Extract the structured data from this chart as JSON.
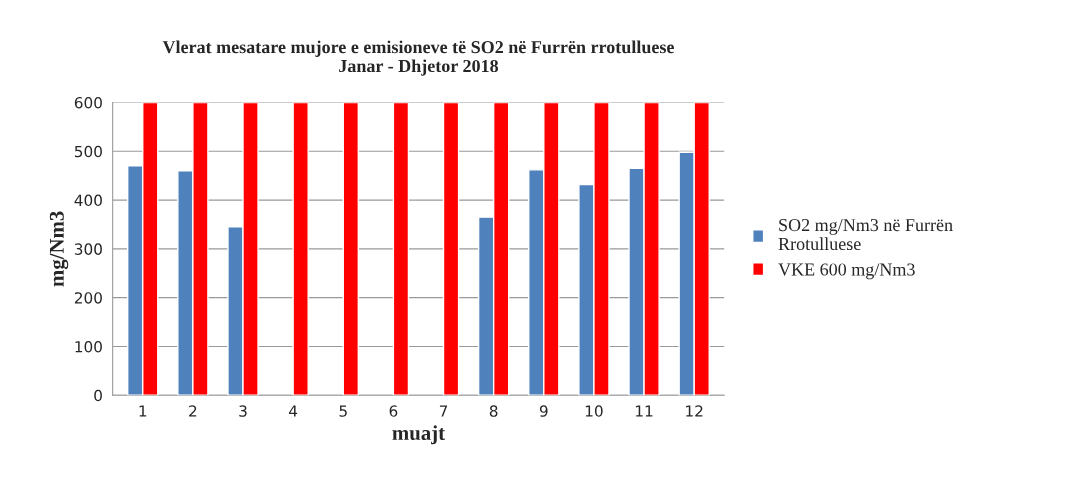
{
  "chart_data": {
    "type": "bar",
    "title": "Vlerat mesatare mujore e emisioneve të SO2 në Furrën rrotulluese\nJanar - Dhjetor 2018",
    "xlabel": "muajt",
    "ylabel": "mg/Nm3",
    "categories": [
      "1",
      "2",
      "3",
      "4",
      "5",
      "6",
      "7",
      "8",
      "9",
      "10",
      "11",
      "12"
    ],
    "series": [
      {
        "name": "SO2 mg/Nm3 në Furrën\nRrotulluese",
        "color": "#4f81bd",
        "values": [
          470,
          460,
          345,
          null,
          null,
          null,
          null,
          365,
          462,
          432,
          465,
          498
        ]
      },
      {
        "name": "VKE 600 mg/Nm3",
        "color": "#ff0000",
        "values": [
          600,
          600,
          600,
          600,
          600,
          600,
          600,
          600,
          600,
          600,
          600,
          600
        ]
      }
    ],
    "ylim": [
      0,
      600
    ],
    "yticks": [
      0,
      100,
      200,
      300,
      400,
      500,
      600
    ],
    "grid": "y",
    "legend": "right"
  }
}
